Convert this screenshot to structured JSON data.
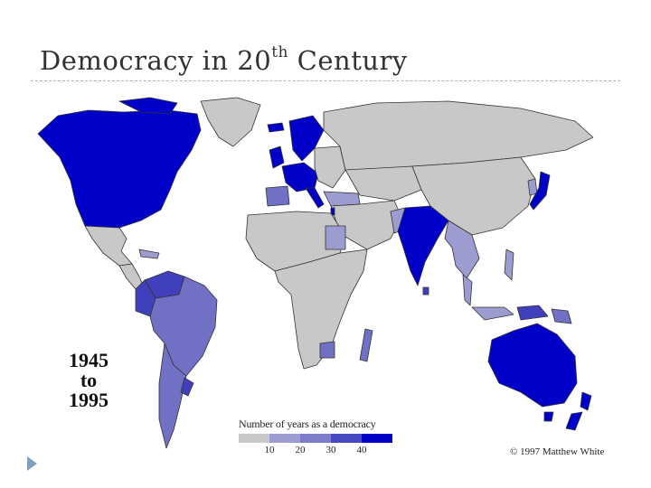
{
  "slide": {
    "title_main": "Democracy in 20",
    "title_sup": "th",
    "title_end": " Century"
  },
  "map": {
    "period_start": "1945",
    "period_to": "to",
    "period_end": "1995",
    "credit": "© 1997 Matthew White",
    "legend": {
      "title": "Number of years as a democracy",
      "ticks": [
        "10",
        "20",
        "30",
        "40"
      ],
      "colors": [
        "#c8c8c8",
        "#9c9cd0",
        "#7c7cc8",
        "#4848c0",
        "#0000c8"
      ]
    },
    "colors": {
      "none": "#c8c8c8",
      "low": "#9c9cd0",
      "mid": "#7070c4",
      "high": "#4040bc",
      "full": "#0000c8",
      "border": "#333333"
    }
  }
}
